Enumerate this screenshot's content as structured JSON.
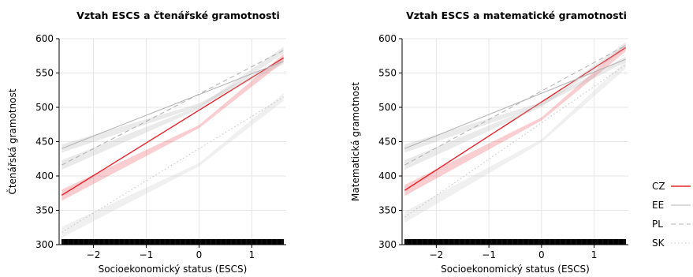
{
  "chart_data": [
    {
      "type": "line",
      "title": "Vztah ESCS a čtenářské gramotnosti",
      "xlabel": "Socioekonomický status (ESCS)",
      "ylabel": "Čtenářská gramotnost",
      "xlim": [
        -2.65,
        1.65
      ],
      "ylim": [
        300,
        600
      ],
      "xticks": [
        -2,
        -1,
        0,
        1
      ],
      "xtick_labels": [
        "−2",
        "−1",
        "0",
        "1"
      ],
      "yticks": [
        300,
        350,
        400,
        450,
        500,
        550,
        600
      ],
      "grid": true,
      "rug": true,
      "series": [
        {
          "name": "CZ",
          "x": [
            -2.6,
            1.6
          ],
          "y": [
            372,
            572
          ],
          "ci": 8,
          "color": "#e8222b",
          "dash": "solid"
        },
        {
          "name": "EE",
          "x": [
            -2.6,
            1.6
          ],
          "y": [
            440,
            567
          ],
          "ci": 6,
          "color": "#b4b4b4",
          "dash": "solid"
        },
        {
          "name": "PL",
          "x": [
            -2.6,
            1.6
          ],
          "y": [
            416,
            583
          ],
          "ci": 7,
          "color": "#b4b4b4",
          "dash": "dashed"
        },
        {
          "name": "SK",
          "x": [
            -2.6,
            1.6
          ],
          "y": [
            318,
            515
          ],
          "ci": 8,
          "color": "#c8c8c8",
          "dash": "dotted"
        }
      ]
    },
    {
      "type": "line",
      "title": "Vztah ESCS a matematické gramotnosti",
      "xlabel": "Socioekonomický status (ESCS)",
      "ylabel": "Matematická gramotnost",
      "xlim": [
        -2.65,
        1.65
      ],
      "ylim": [
        300,
        600
      ],
      "xticks": [
        -2,
        -1,
        0,
        1
      ],
      "xtick_labels": [
        "−2",
        "−1",
        "0",
        "1"
      ],
      "yticks": [
        300,
        350,
        400,
        450,
        500,
        550,
        600
      ],
      "grid": true,
      "rug": true,
      "series": [
        {
          "name": "CZ",
          "x": [
            -2.6,
            1.6
          ],
          "y": [
            379,
            587
          ],
          "ci": 8,
          "color": "#e8222b",
          "dash": "solid"
        },
        {
          "name": "EE",
          "x": [
            -2.6,
            1.6
          ],
          "y": [
            440,
            570
          ],
          "ci": 6,
          "color": "#b4b4b4",
          "dash": "solid"
        },
        {
          "name": "PL",
          "x": [
            -2.6,
            1.6
          ],
          "y": [
            416,
            590
          ],
          "ci": 7,
          "color": "#b4b4b4",
          "dash": "dashed"
        },
        {
          "name": "SK",
          "x": [
            -2.6,
            1.6
          ],
          "y": [
            340,
            562
          ],
          "ci": 8,
          "color": "#c8c8c8",
          "dash": "dotted"
        }
      ]
    }
  ],
  "legend": {
    "placement": "right",
    "items": [
      {
        "label": "CZ",
        "color": "#e8222b",
        "dash": "solid"
      },
      {
        "label": "EE",
        "color": "#b4b4b4",
        "dash": "solid"
      },
      {
        "label": "PL",
        "color": "#b4b4b4",
        "dash": "dashed"
      },
      {
        "label": "SK",
        "color": "#c8c8c8",
        "dash": "dotted"
      }
    ]
  }
}
